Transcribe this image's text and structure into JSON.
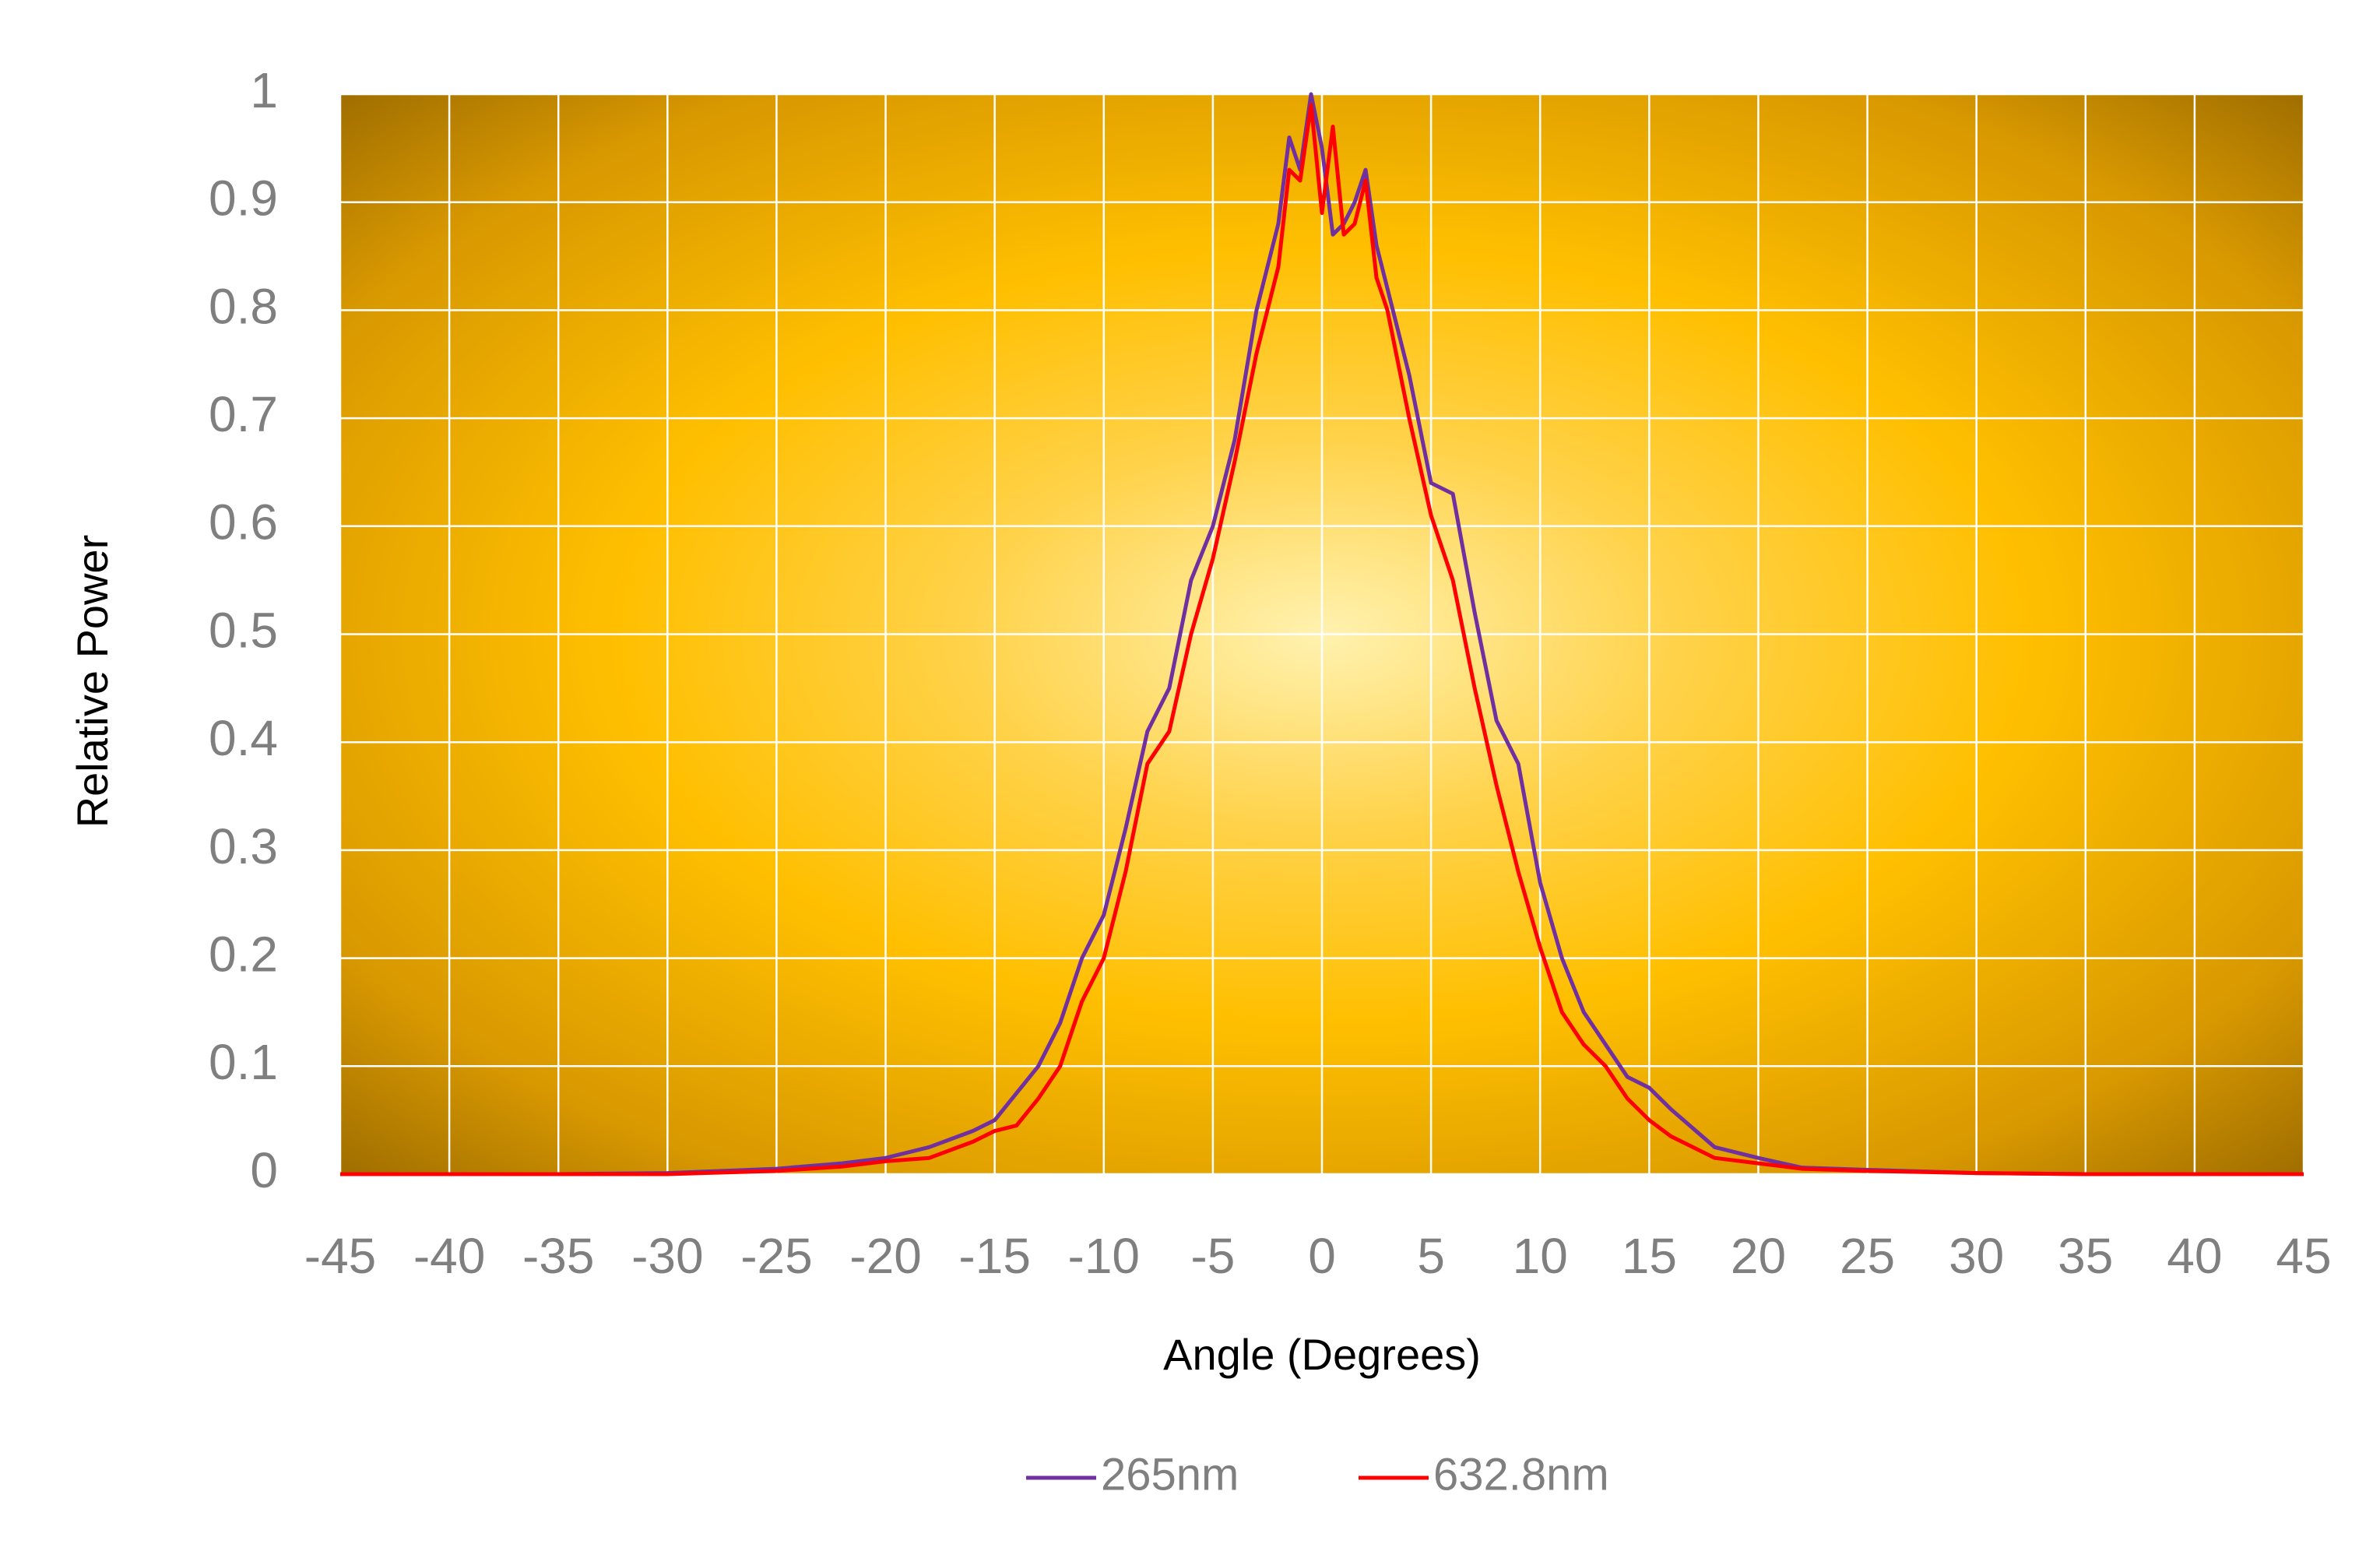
{
  "chart_data": {
    "type": "line",
    "x_label": "Angle (Degrees)",
    "y_label": "Relative Power",
    "x": [
      -45,
      -40,
      -35,
      -30,
      -25,
      -22,
      -20,
      -18,
      -16,
      -15,
      -14,
      -13,
      -12,
      -11,
      -10,
      -9,
      -8,
      -7,
      -6,
      -5,
      -4,
      -3,
      -2,
      -1.5,
      -1,
      -0.5,
      0,
      0.5,
      1,
      1.5,
      2,
      2.5,
      3,
      4,
      5,
      6,
      7,
      8,
      9,
      10,
      11,
      12,
      13,
      14,
      15,
      16,
      18,
      20,
      22,
      25,
      30,
      35,
      40,
      45
    ],
    "series": [
      {
        "name": "265nm",
        "color": "#7030a0",
        "values": [
          0,
          0,
          0,
          0.001,
          0.005,
          0.01,
          0.015,
          0.025,
          0.04,
          0.05,
          0.075,
          0.1,
          0.14,
          0.2,
          0.24,
          0.32,
          0.41,
          0.45,
          0.55,
          0.6,
          0.68,
          0.8,
          0.88,
          0.96,
          0.93,
          1.0,
          0.95,
          0.87,
          0.88,
          0.9,
          0.93,
          0.86,
          0.82,
          0.74,
          0.64,
          0.63,
          0.52,
          0.42,
          0.38,
          0.27,
          0.2,
          0.15,
          0.12,
          0.09,
          0.08,
          0.06,
          0.025,
          0.015,
          0.006,
          0.004,
          0.001,
          0,
          0,
          0
        ]
      },
      {
        "name": "632.8nm",
        "color": "#ff0000",
        "values": [
          0,
          0,
          0,
          0,
          0.003,
          0.007,
          0.012,
          0.015,
          0.03,
          0.04,
          0.045,
          0.07,
          0.1,
          0.16,
          0.2,
          0.28,
          0.38,
          0.41,
          0.5,
          0.57,
          0.66,
          0.76,
          0.84,
          0.93,
          0.92,
          0.99,
          0.89,
          0.97,
          0.87,
          0.88,
          0.92,
          0.83,
          0.8,
          0.7,
          0.61,
          0.55,
          0.45,
          0.36,
          0.28,
          0.21,
          0.15,
          0.12,
          0.1,
          0.07,
          0.05,
          0.035,
          0.015,
          0.01,
          0.005,
          0.003,
          0.001,
          0,
          0,
          0
        ]
      }
    ],
    "xlim": [
      -45,
      45
    ],
    "xticks": [
      -45,
      -40,
      -35,
      -30,
      -25,
      -20,
      -15,
      -10,
      -5,
      0,
      5,
      10,
      15,
      20,
      25,
      30,
      35,
      40,
      45
    ],
    "ylim": [
      0,
      1
    ],
    "yticks": [
      0,
      0.1,
      0.2,
      0.3,
      0.4,
      0.5,
      0.6,
      0.7,
      0.8,
      0.9,
      1
    ],
    "grid": true,
    "legend": "bottom"
  }
}
